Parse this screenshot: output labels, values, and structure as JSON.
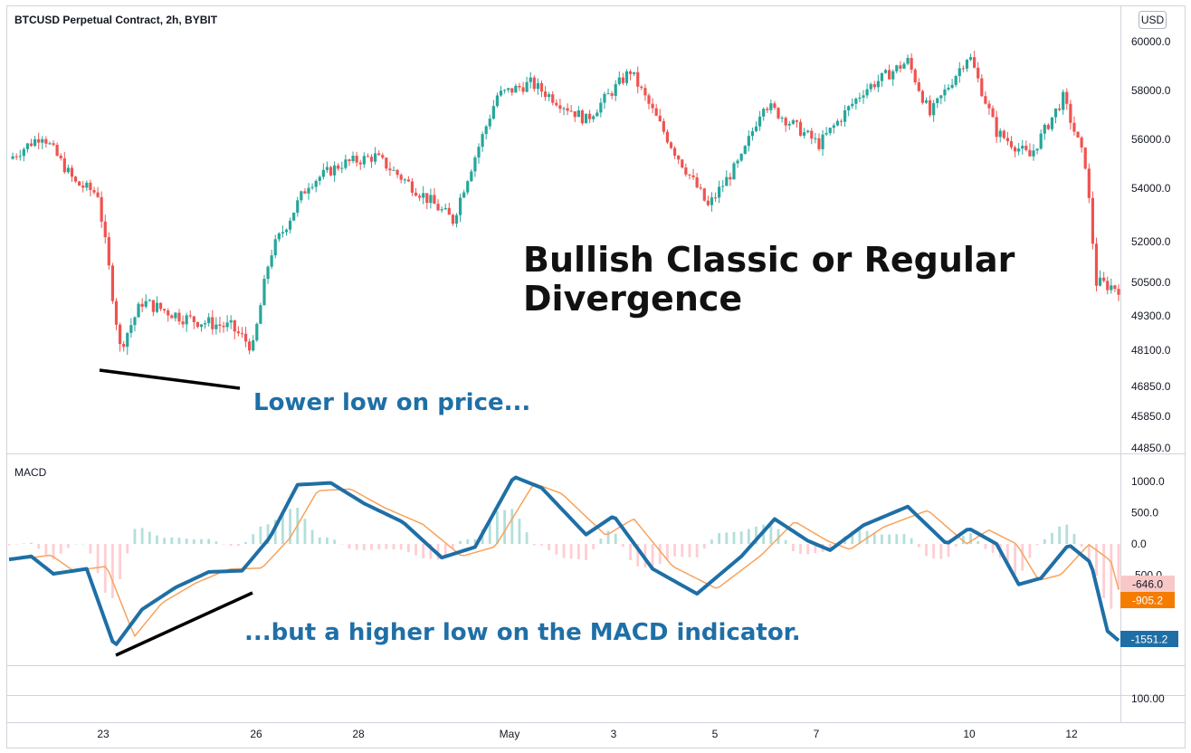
{
  "chart_data": [
    {
      "type": "candlestick",
      "title": "BTCUSD Perpetual Contract, 2h, BYBIT",
      "currency": "USD",
      "y_ticks": [
        "60000.0",
        "58000.0",
        "56000.0",
        "54000.0",
        "52000.0",
        "50500.0",
        "49300.0",
        "48100.0",
        "46850.0",
        "45850.0",
        "44850.0"
      ],
      "x_ticks": [
        "23",
        "26",
        "28",
        "May",
        "3",
        "5",
        "7",
        "10",
        "12"
      ],
      "anchors": [
        {
          "t": 0,
          "p": 55200
        },
        {
          "t": 0.03,
          "p": 56200
        },
        {
          "t": 0.06,
          "p": 54200
        },
        {
          "t": 0.08,
          "p": 53800
        },
        {
          "t": 0.1,
          "p": 48200
        },
        {
          "t": 0.12,
          "p": 49800
        },
        {
          "t": 0.16,
          "p": 49200
        },
        {
          "t": 0.2,
          "p": 48900
        },
        {
          "t": 0.22,
          "p": 48200
        },
        {
          "t": 0.235,
          "p": 51500
        },
        {
          "t": 0.27,
          "p": 54200
        },
        {
          "t": 0.3,
          "p": 55000
        },
        {
          "t": 0.33,
          "p": 55300
        },
        {
          "t": 0.36,
          "p": 54200
        },
        {
          "t": 0.4,
          "p": 52800
        },
        {
          "t": 0.44,
          "p": 57800
        },
        {
          "t": 0.47,
          "p": 58300
        },
        {
          "t": 0.52,
          "p": 56800
        },
        {
          "t": 0.56,
          "p": 58800
        },
        {
          "t": 0.6,
          "p": 55500
        },
        {
          "t": 0.63,
          "p": 53300
        },
        {
          "t": 0.66,
          "p": 55200
        },
        {
          "t": 0.68,
          "p": 57500
        },
        {
          "t": 0.73,
          "p": 55800
        },
        {
          "t": 0.77,
          "p": 58000
        },
        {
          "t": 0.81,
          "p": 59200
        },
        {
          "t": 0.83,
          "p": 57000
        },
        {
          "t": 0.865,
          "p": 59500
        },
        {
          "t": 0.89,
          "p": 56300
        },
        {
          "t": 0.92,
          "p": 55300
        },
        {
          "t": 0.95,
          "p": 57700
        },
        {
          "t": 0.97,
          "p": 55000
        },
        {
          "t": 0.98,
          "p": 50500
        },
        {
          "t": 1.0,
          "p": 50300
        }
      ]
    },
    {
      "type": "line",
      "title": "MACD",
      "y_ticks": [
        "1000.0",
        "500.0",
        "0.0",
        "-500.0"
      ],
      "macd_anchors": [
        {
          "t": 0,
          "v": -250
        },
        {
          "t": 0.02,
          "v": -200
        },
        {
          "t": 0.04,
          "v": -480
        },
        {
          "t": 0.07,
          "v": -400
        },
        {
          "t": 0.095,
          "v": -1650
        },
        {
          "t": 0.12,
          "v": -1050
        },
        {
          "t": 0.15,
          "v": -700
        },
        {
          "t": 0.18,
          "v": -450
        },
        {
          "t": 0.21,
          "v": -430
        },
        {
          "t": 0.235,
          "v": 100
        },
        {
          "t": 0.26,
          "v": 950
        },
        {
          "t": 0.29,
          "v": 980
        },
        {
          "t": 0.32,
          "v": 650
        },
        {
          "t": 0.355,
          "v": 350
        },
        {
          "t": 0.39,
          "v": -220
        },
        {
          "t": 0.42,
          "v": -50
        },
        {
          "t": 0.455,
          "v": 1080
        },
        {
          "t": 0.48,
          "v": 900
        },
        {
          "t": 0.52,
          "v": 150
        },
        {
          "t": 0.545,
          "v": 450
        },
        {
          "t": 0.58,
          "v": -400
        },
        {
          "t": 0.62,
          "v": -800
        },
        {
          "t": 0.66,
          "v": -200
        },
        {
          "t": 0.69,
          "v": 400
        },
        {
          "t": 0.72,
          "v": 50
        },
        {
          "t": 0.74,
          "v": -100
        },
        {
          "t": 0.77,
          "v": 300
        },
        {
          "t": 0.81,
          "v": 600
        },
        {
          "t": 0.845,
          "v": 0
        },
        {
          "t": 0.865,
          "v": 250
        },
        {
          "t": 0.89,
          "v": 0
        },
        {
          "t": 0.91,
          "v": -650
        },
        {
          "t": 0.93,
          "v": -550
        },
        {
          "t": 0.955,
          "v": -10
        },
        {
          "t": 0.975,
          "v": -300
        },
        {
          "t": 0.99,
          "v": -1400
        },
        {
          "t": 1.0,
          "v": -1551
        }
      ],
      "signal_lag": 0.018,
      "badges": {
        "histogram": "-646.0",
        "signal": "-905.2",
        "macd": "-1551.2"
      },
      "axis_extra_tick": "100.00"
    }
  ],
  "annotations": {
    "headline_line1": "Bullish Classic or Regular",
    "headline_line2": "Divergence",
    "price_note": "Lower low on price...",
    "macd_note": "...but a higher low on the MACD indicator."
  },
  "colors": {
    "up": "#26a69a",
    "down": "#ef5350",
    "macd": "#1f6fa6",
    "signal": "#f7a35c",
    "hist_up": "#b2dfdb",
    "hist_down": "#ffcdd2",
    "badge_hist": "#f8c8c8",
    "badge_signal": "#f57c00",
    "badge_macd": "#1f6fa6"
  }
}
